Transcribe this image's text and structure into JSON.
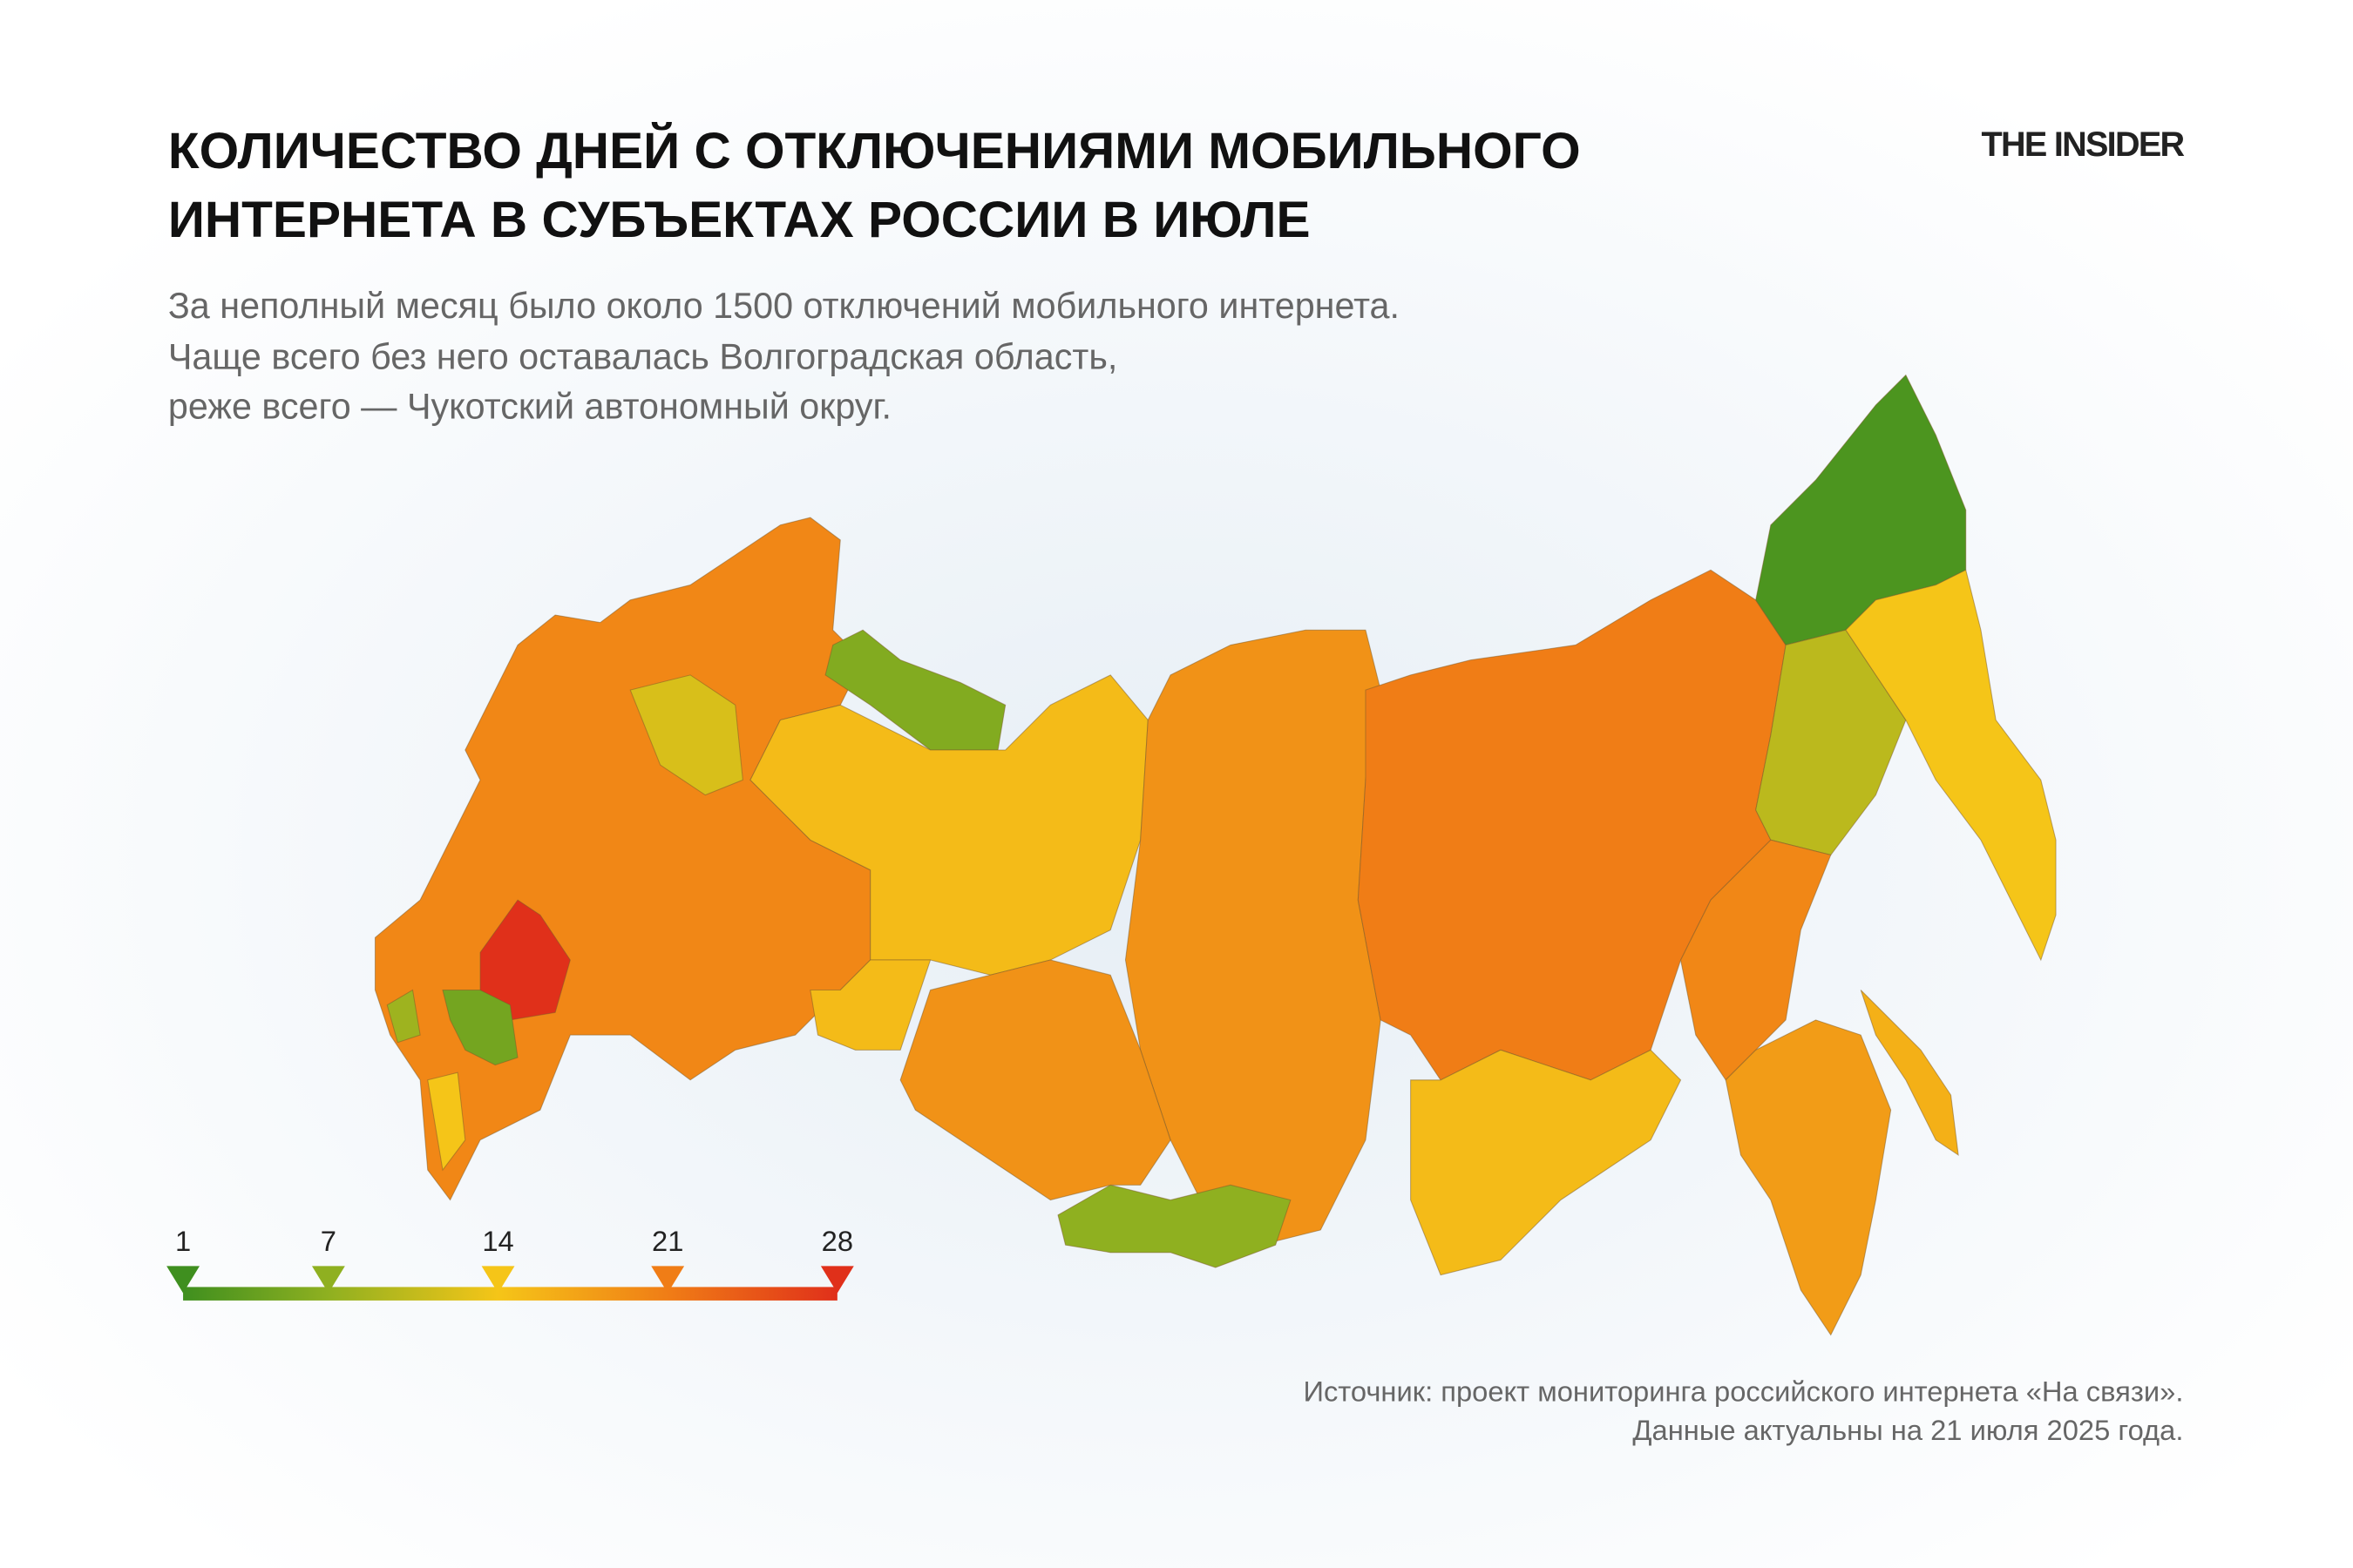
{
  "header": {
    "title": [
      "КОЛИЧЕСТВО ДНЕЙ С ОТКЛЮЧЕНИЯМИ МОБИЛЬНОГО",
      "ИНТЕРНЕТА В СУБЪЕКТАХ РОССИИ В ИЮЛЕ"
    ],
    "subtitle": [
      "За неполный месяц было около 1500 отключений мобильного интернета.",
      "Чаще всего без него оставалась Волгоградская область,",
      "реже всего — Чукотский автономный округ."
    ],
    "logo": "THE INSIDER"
  },
  "map": {
    "regions": [
      20,
      28,
      5,
      12,
      6,
      15,
      19,
      21,
      2,
      10,
      14,
      20,
      18,
      16,
      15,
      7,
      19,
      15,
      8,
      14
    ],
    "legend": {
      "ticks": [
        1,
        7,
        14,
        21,
        28
      ],
      "colors": [
        "#3f8f1f",
        "#8fb020",
        "#f5c518",
        "#f07d16",
        "#e0301a"
      ]
    }
  },
  "footer": {
    "source": [
      "Источник: проект мониторинга российского интернета «На связи».",
      "Данные актуальны на 21 июля 2025 года."
    ]
  }
}
